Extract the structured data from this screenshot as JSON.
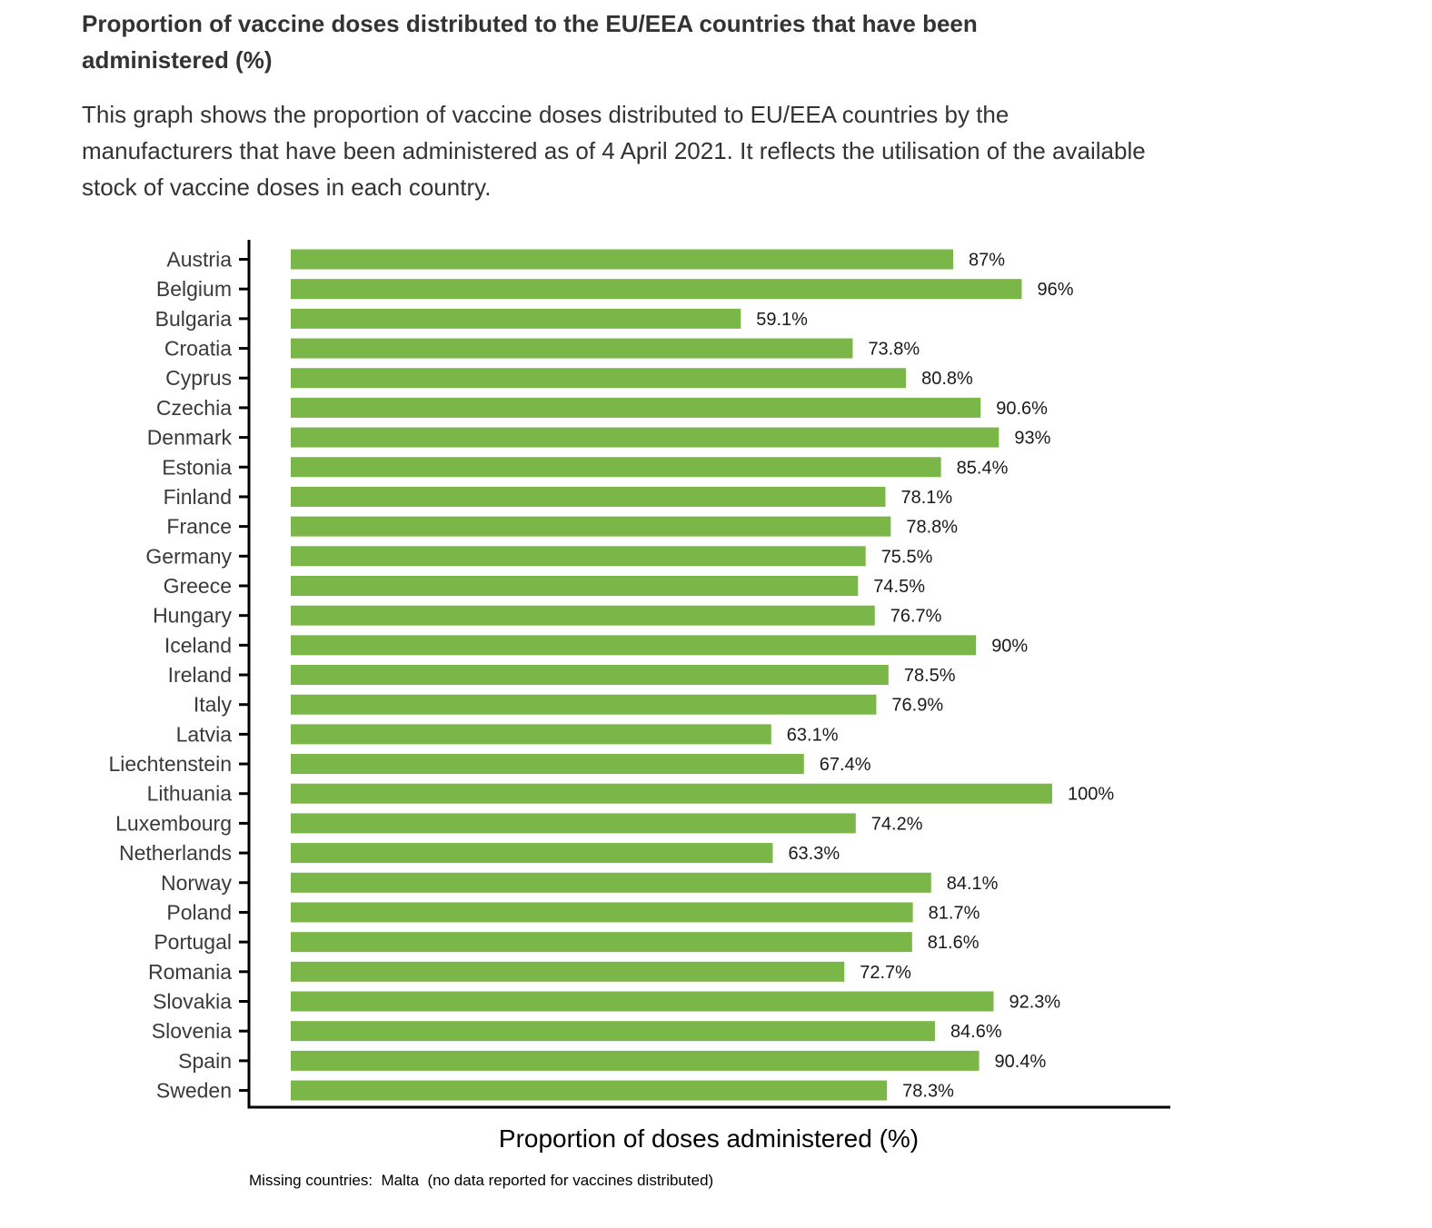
{
  "header": {
    "title": "Proportion of vaccine doses distributed to the EU/EEA countries that have been administered (%)",
    "description": "This graph shows the proportion of vaccine doses distributed to EU/EEA countries by the manufacturers that have been administered as of 4 April 2021. It reflects the utilisation of the available stock of vaccine doses in each country."
  },
  "colors": {
    "bar": "#7ab648",
    "axis": "#000000",
    "text": "#333333"
  },
  "chart_data": {
    "type": "bar",
    "orientation": "horizontal",
    "title": "Proportion of vaccine doses distributed to the EU/EEA countries that have been administered (%)",
    "xlabel": "Proportion of doses administered (%)",
    "ylabel": "",
    "xlim": [
      0,
      100
    ],
    "grid": false,
    "categories": [
      "Austria",
      "Belgium",
      "Bulgaria",
      "Croatia",
      "Cyprus",
      "Czechia",
      "Denmark",
      "Estonia",
      "Finland",
      "France",
      "Germany",
      "Greece",
      "Hungary",
      "Iceland",
      "Ireland",
      "Italy",
      "Latvia",
      "Liechtenstein",
      "Lithuania",
      "Luxembourg",
      "Netherlands",
      "Norway",
      "Poland",
      "Portugal",
      "Romania",
      "Slovakia",
      "Slovenia",
      "Spain",
      "Sweden"
    ],
    "values": [
      87,
      96,
      59.1,
      73.8,
      80.8,
      90.6,
      93,
      85.4,
      78.1,
      78.8,
      75.5,
      74.5,
      76.7,
      90,
      78.5,
      76.9,
      63.1,
      67.4,
      100,
      74.2,
      63.3,
      84.1,
      81.7,
      81.6,
      72.7,
      92.3,
      84.6,
      90.4,
      78.3
    ],
    "labels": [
      "87%",
      "96%",
      "59.1%",
      "73.8%",
      "80.8%",
      "90.6%",
      "93%",
      "85.4%",
      "78.1%",
      "78.8%",
      "75.5%",
      "74.5%",
      "76.7%",
      "90%",
      "78.5%",
      "76.9%",
      "63.1%",
      "67.4%",
      "100%",
      "74.2%",
      "63.3%",
      "84.1%",
      "81.7%",
      "81.6%",
      "72.7%",
      "92.3%",
      "84.6%",
      "90.4%",
      "78.3%"
    ],
    "footnote": "Missing countries:  Malta  (no data reported for vaccines distributed)"
  }
}
